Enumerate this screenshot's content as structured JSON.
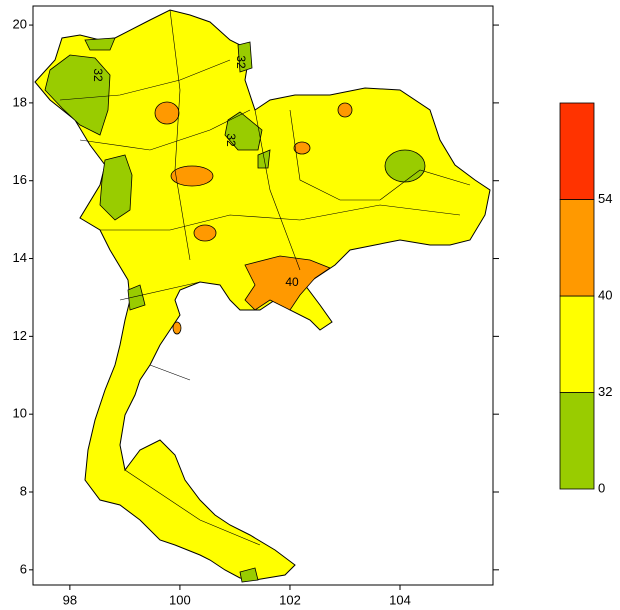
{
  "map": {
    "xlim": [
      97.33,
      105.69
    ],
    "ylim": [
      5.61,
      20.49
    ],
    "xticks": [
      98,
      100,
      102,
      104
    ],
    "yticks": [
      6,
      8,
      10,
      12,
      14,
      16,
      18,
      20
    ]
  },
  "colorbar": {
    "levels": [
      0,
      32,
      40,
      54
    ],
    "colors": [
      "#99cc00",
      "#ffff00",
      "#ff9900",
      "#ff3300"
    ]
  },
  "contour_labels": [
    "32",
    "32",
    "32",
    "40"
  ]
}
